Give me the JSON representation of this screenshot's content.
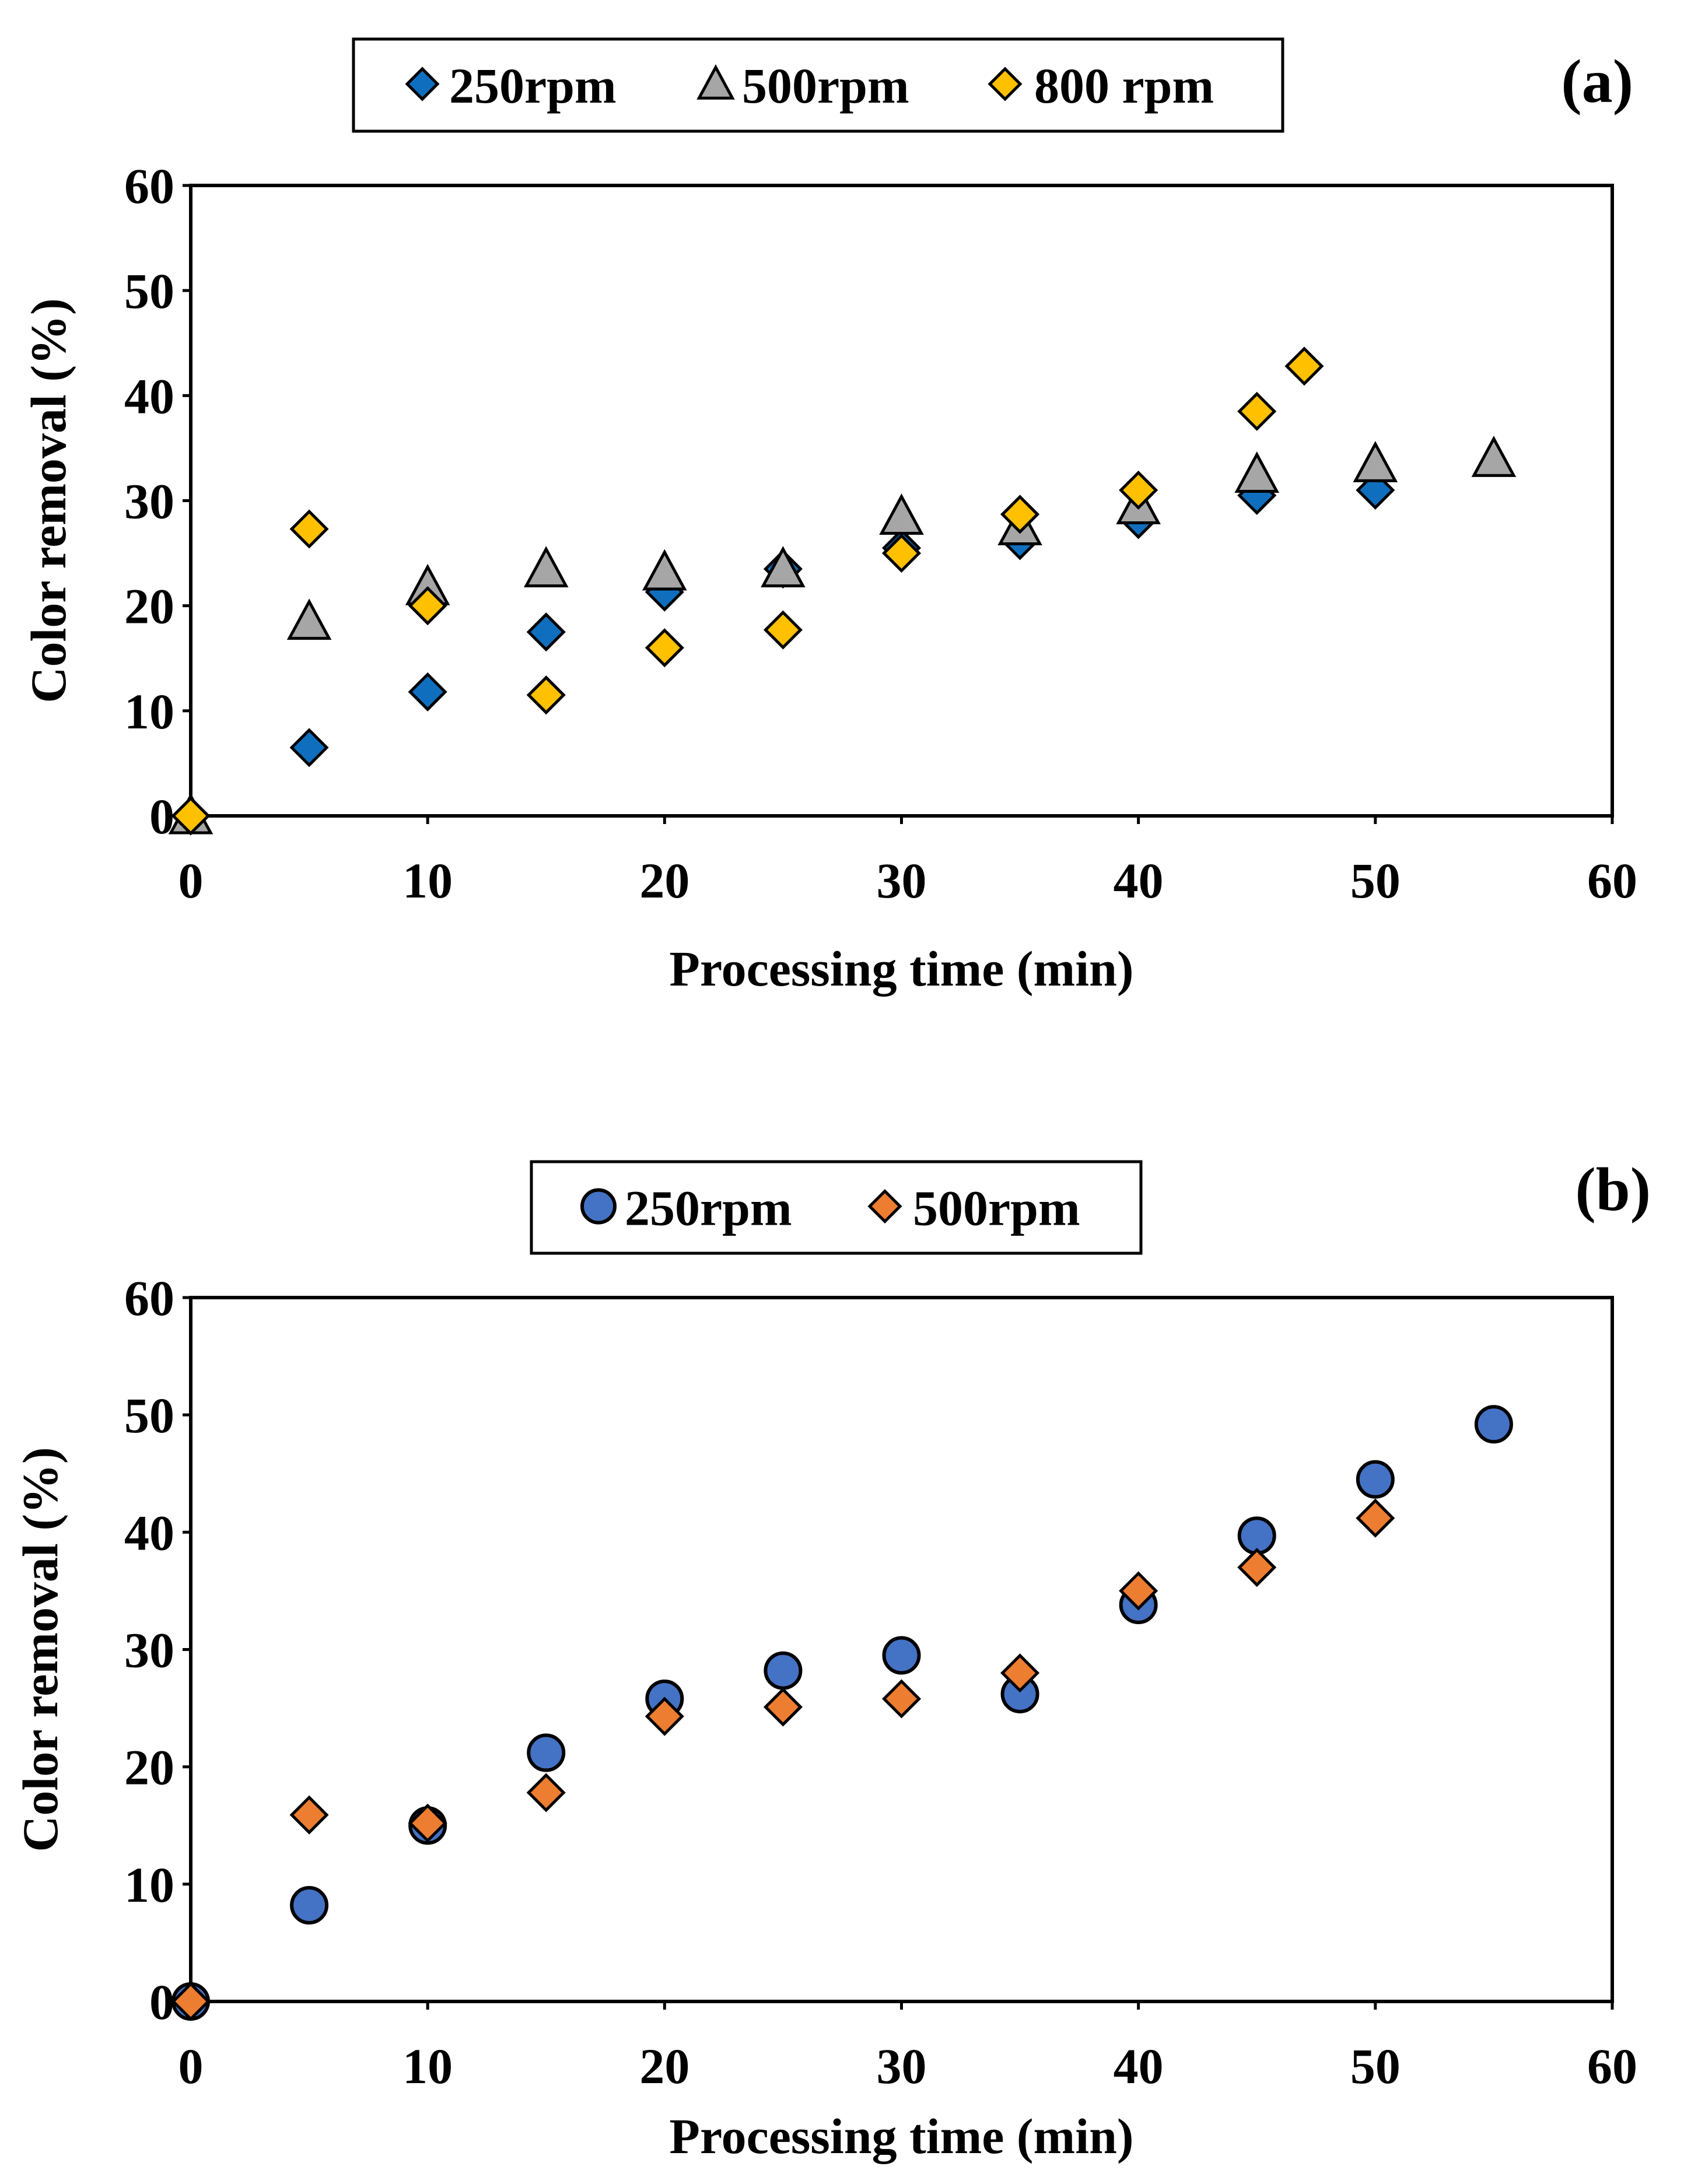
{
  "chart_data": [
    {
      "type": "scatter",
      "panel_label": "(a)",
      "xlabel": "Processing time (min)",
      "ylabel": "Color removal (%)",
      "xlim": [
        0,
        60
      ],
      "ylim": [
        0,
        60
      ],
      "xticks": [
        0,
        10,
        20,
        30,
        40,
        50,
        60
      ],
      "yticks": [
        0,
        10,
        20,
        30,
        40,
        50,
        60
      ],
      "grid": false,
      "legend_position": "top",
      "series": [
        {
          "name": "250rpm",
          "marker": "diamond",
          "color": "#0F6FBE",
          "x": [
            0,
            5,
            10,
            15,
            20,
            25,
            30,
            35,
            40,
            45,
            50
          ],
          "y": [
            0,
            6.5,
            11.8,
            17.5,
            21.3,
            23.5,
            25.5,
            26.2,
            28.2,
            30.5,
            31.0
          ]
        },
        {
          "name": "500rpm",
          "marker": "triangle",
          "color": "#A6A6A6",
          "x": [
            0,
            5,
            10,
            15,
            20,
            25,
            30,
            35,
            40,
            45,
            50,
            55
          ],
          "y": [
            0,
            18.5,
            21.8,
            23.5,
            23.2,
            23.5,
            28.5,
            27.5,
            29.5,
            32.5,
            33.5,
            34.0
          ]
        },
        {
          "name": "800 rpm",
          "marker": "diamond",
          "color": "#FFC000",
          "x": [
            0,
            5,
            10,
            15,
            20,
            25,
            30,
            35,
            40,
            45,
            47
          ],
          "y": [
            0,
            27.3,
            20.0,
            11.5,
            16.0,
            17.7,
            25.0,
            28.7,
            31.0,
            38.5,
            42.8
          ]
        }
      ]
    },
    {
      "type": "scatter",
      "panel_label": "(b)",
      "xlabel": "Processing time (min)",
      "ylabel": "Color removal (%)",
      "xlim": [
        0,
        60
      ],
      "ylim": [
        0,
        60
      ],
      "xticks": [
        0,
        10,
        20,
        30,
        40,
        50,
        60
      ],
      "yticks": [
        0,
        10,
        20,
        30,
        40,
        50,
        60
      ],
      "grid": false,
      "legend_position": "top",
      "series": [
        {
          "name": "250rpm",
          "marker": "circle",
          "color": "#4472C4",
          "x": [
            0,
            5,
            10,
            15,
            20,
            25,
            30,
            35,
            40,
            45,
            50,
            55
          ],
          "y": [
            0,
            8.2,
            15.0,
            21.2,
            25.8,
            28.2,
            29.5,
            26.2,
            33.8,
            39.7,
            44.5,
            49.2
          ]
        },
        {
          "name": "500rpm",
          "marker": "diamond",
          "color": "#ED7D31",
          "x": [
            0,
            5,
            10,
            15,
            20,
            25,
            30,
            35,
            40,
            45,
            50
          ],
          "y": [
            0,
            15.9,
            15.2,
            17.8,
            24.3,
            25.1,
            25.8,
            28.0,
            35.0,
            37.0,
            41.2
          ]
        }
      ]
    }
  ]
}
